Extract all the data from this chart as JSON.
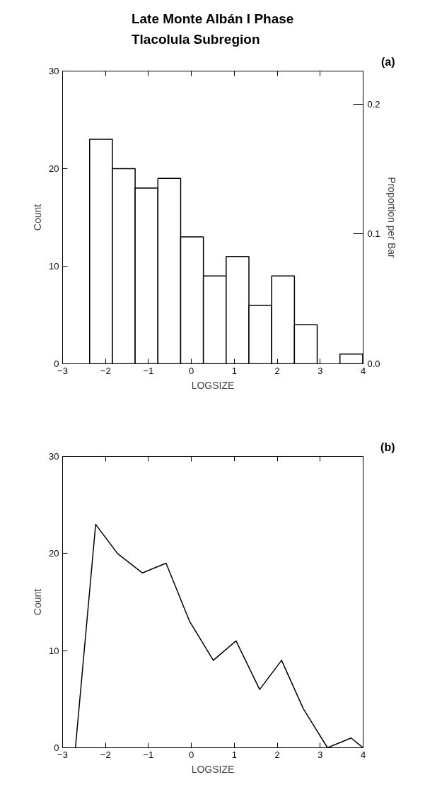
{
  "chart_data": [
    {
      "type": "histogram",
      "title": "Late Monte Albán I Phase\nTlacolula Subregion",
      "xlabel": "LOGSIZE",
      "ylabel": "Count",
      "y2label": "Proportion per Bar",
      "bins": [
        -2.37,
        -1.84,
        -1.31,
        -0.78,
        -0.25,
        0.28,
        0.81,
        1.34,
        1.87,
        2.4,
        2.93,
        3.46,
        3.99
      ],
      "values": [
        23,
        20,
        18,
        19,
        13,
        9,
        11,
        6,
        9,
        4,
        0,
        1
      ],
      "color": "#ffffff",
      "xlim": [
        -3,
        4
      ],
      "ylim": [
        0,
        30
      ],
      "y2lim": [
        0,
        0.2256
      ],
      "xticks": [
        -3,
        -2,
        -1,
        0,
        1,
        2,
        3,
        4
      ],
      "yticks": [
        0,
        10,
        20,
        30
      ],
      "y2ticks": [
        {
          "value": 0,
          "label": "0.0"
        },
        0.1,
        0.2
      ],
      "grid": false,
      "annotations": [
        "(a)"
      ]
    },
    {
      "type": "line",
      "xlabel": "LOGSIZE",
      "ylabel": "Count",
      "x": [
        -2.7,
        -2.23,
        -1.72,
        -1.14,
        -0.59,
        -0.04,
        0.51,
        1.04,
        1.59,
        2.1,
        2.61,
        3.17,
        3.72,
        4.0
      ],
      "values": [
        0,
        23,
        20,
        18,
        19,
        13,
        9,
        11,
        6,
        9,
        4,
        0,
        1,
        0
      ],
      "color": "#000000",
      "xlim": [
        -3,
        4
      ],
      "ylim": [
        0,
        30
      ],
      "xticks": [
        -3,
        -2,
        -1,
        0,
        1,
        2,
        3,
        4
      ],
      "yticks": [
        0,
        10,
        20,
        30
      ],
      "grid": false,
      "marker": "none",
      "line_style": "solid",
      "annotations": [
        "(b)"
      ]
    }
  ]
}
